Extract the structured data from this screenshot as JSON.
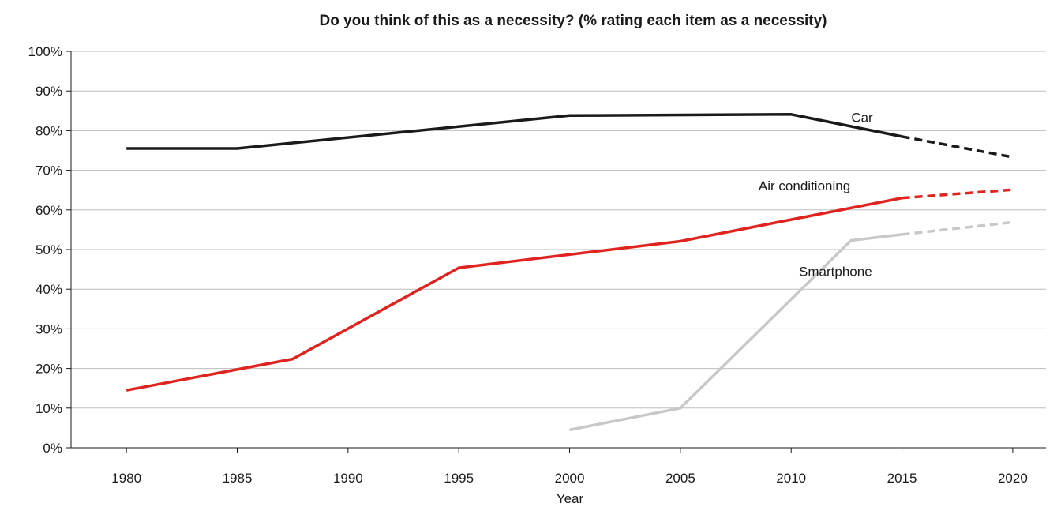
{
  "chart_data": {
    "type": "line",
    "title": "Do you think of this as a necessity? (% rating each item as a necessity)",
    "xlabel": "Year",
    "ylabel": "",
    "xlim": [
      1977.5,
      2021.5
    ],
    "ylim": [
      0,
      100
    ],
    "x_ticks": [
      "1980",
      "1985",
      "1990",
      "1995",
      "2000",
      "2005",
      "2010",
      "2015",
      "2020"
    ],
    "y_ticks": [
      "0%",
      "10%",
      "20%",
      "30%",
      "40%",
      "50%",
      "60%",
      "70%",
      "80%",
      "90%",
      "100%"
    ],
    "grid": "horizontal",
    "series": [
      {
        "name": "Car",
        "color": "#1a1a1a",
        "points": [
          [
            1980,
            75.5
          ],
          [
            1985,
            75.5
          ],
          [
            2000,
            83.8
          ],
          [
            2010,
            84.1
          ],
          [
            2015,
            78.5
          ]
        ],
        "projected": [
          [
            2015,
            78.5
          ],
          [
            2020,
            73.3
          ]
        ]
      },
      {
        "name": "Air conditioning",
        "color": "#e0231f",
        "points": [
          [
            1980,
            14.5
          ],
          [
            1987.5,
            22.4
          ],
          [
            1995,
            45.4
          ],
          [
            2005,
            52.1
          ],
          [
            2015,
            63.0
          ]
        ],
        "projected": [
          [
            2015,
            63.0
          ],
          [
            2020,
            65.1
          ]
        ]
      },
      {
        "name": "Smartphone",
        "color": "#c8c8c8",
        "points": [
          [
            2000,
            4.5
          ],
          [
            2005,
            10.0
          ],
          [
            2012.7,
            52.3
          ],
          [
            2015,
            53.8
          ]
        ],
        "projected": [
          [
            2015,
            53.8
          ],
          [
            2020,
            56.9
          ]
        ]
      }
    ],
    "annotations": [
      {
        "series": "Car",
        "text": "Car",
        "x": 2013.2,
        "y": 82.2
      },
      {
        "series": "Air conditioning",
        "text": "Air conditioning",
        "x": 2010.6,
        "y": 64.9
      },
      {
        "series": "Smartphone",
        "text": "Smartphone",
        "x": 2012.0,
        "y": 43.3
      }
    ]
  }
}
